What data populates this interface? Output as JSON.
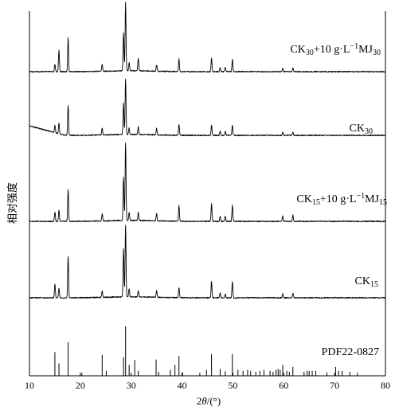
{
  "chart_data": {
    "type": "line",
    "xlabel_parts": {
      "prefix": "2",
      "italic": "θ",
      "suffix": "/(°)"
    },
    "ylabel": "相对强度",
    "xlim": [
      10,
      80
    ],
    "xticks": [
      10,
      20,
      30,
      40,
      50,
      60,
      70,
      80
    ],
    "series": [
      {
        "name_parts": [
          {
            "t": "CK"
          },
          {
            "t": "30",
            "s": "sub"
          },
          {
            "t": "+10 g·L"
          },
          {
            "t": "−1",
            "s": "sup"
          },
          {
            "t": "MJ"
          },
          {
            "t": "30",
            "s": "sub"
          }
        ],
        "baseline_index": 0,
        "peaks": [
          {
            "x": 15.0,
            "y": 9
          },
          {
            "x": 15.8,
            "y": 27
          },
          {
            "x": 17.6,
            "y": 42
          },
          {
            "x": 24.3,
            "y": 9
          },
          {
            "x": 28.5,
            "y": 48
          },
          {
            "x": 28.9,
            "y": 86
          },
          {
            "x": 29.6,
            "y": 10
          },
          {
            "x": 31.4,
            "y": 16
          },
          {
            "x": 35.0,
            "y": 8
          },
          {
            "x": 39.4,
            "y": 16
          },
          {
            "x": 45.8,
            "y": 17
          },
          {
            "x": 47.5,
            "y": 5
          },
          {
            "x": 48.5,
            "y": 6
          },
          {
            "x": 49.9,
            "y": 15
          },
          {
            "x": 59.8,
            "y": 4
          },
          {
            "x": 61.8,
            "y": 5
          }
        ]
      },
      {
        "name_parts": [
          {
            "t": "CK"
          },
          {
            "t": "30",
            "s": "sub"
          }
        ],
        "baseline_index": 1,
        "slope_start": 12,
        "peaks": [
          {
            "x": 15.0,
            "y": 9
          },
          {
            "x": 15.8,
            "y": 14
          },
          {
            "x": 17.6,
            "y": 38
          },
          {
            "x": 24.3,
            "y": 9
          },
          {
            "x": 28.5,
            "y": 40
          },
          {
            "x": 28.9,
            "y": 70
          },
          {
            "x": 29.6,
            "y": 8
          },
          {
            "x": 31.4,
            "y": 10
          },
          {
            "x": 35.0,
            "y": 8
          },
          {
            "x": 39.4,
            "y": 14
          },
          {
            "x": 45.8,
            "y": 13
          },
          {
            "x": 47.5,
            "y": 5
          },
          {
            "x": 48.5,
            "y": 5
          },
          {
            "x": 49.9,
            "y": 13
          },
          {
            "x": 59.8,
            "y": 4
          },
          {
            "x": 61.8,
            "y": 4
          }
        ]
      },
      {
        "name_parts": [
          {
            "t": "CK"
          },
          {
            "t": "15",
            "s": "sub"
          },
          {
            "t": "+10 g·L"
          },
          {
            "t": "−1",
            "s": "sup"
          },
          {
            "t": "MJ"
          },
          {
            "t": "15",
            "s": "sub"
          }
        ],
        "baseline_index": 2,
        "peaks": [
          {
            "x": 15.0,
            "y": 12
          },
          {
            "x": 15.8,
            "y": 14
          },
          {
            "x": 17.6,
            "y": 40
          },
          {
            "x": 24.3,
            "y": 9
          },
          {
            "x": 28.5,
            "y": 55
          },
          {
            "x": 28.9,
            "y": 98
          },
          {
            "x": 29.6,
            "y": 10
          },
          {
            "x": 31.4,
            "y": 10
          },
          {
            "x": 35.0,
            "y": 9
          },
          {
            "x": 39.4,
            "y": 20
          },
          {
            "x": 45.8,
            "y": 22
          },
          {
            "x": 47.5,
            "y": 6
          },
          {
            "x": 48.5,
            "y": 6
          },
          {
            "x": 49.9,
            "y": 20
          },
          {
            "x": 59.8,
            "y": 7
          },
          {
            "x": 61.8,
            "y": 8
          }
        ]
      },
      {
        "name_parts": [
          {
            "t": "CK"
          },
          {
            "t": "15",
            "s": "sub"
          }
        ],
        "baseline_index": 3,
        "peaks": [
          {
            "x": 15.0,
            "y": 17
          },
          {
            "x": 15.8,
            "y": 12
          },
          {
            "x": 17.6,
            "y": 52
          },
          {
            "x": 24.3,
            "y": 8
          },
          {
            "x": 28.5,
            "y": 60
          },
          {
            "x": 28.9,
            "y": 90
          },
          {
            "x": 29.6,
            "y": 10
          },
          {
            "x": 31.4,
            "y": 8
          },
          {
            "x": 35.0,
            "y": 8
          },
          {
            "x": 39.4,
            "y": 13
          },
          {
            "x": 45.8,
            "y": 20
          },
          {
            "x": 47.5,
            "y": 6
          },
          {
            "x": 48.5,
            "y": 5
          },
          {
            "x": 49.9,
            "y": 20
          },
          {
            "x": 59.8,
            "y": 5
          },
          {
            "x": 61.8,
            "y": 6
          }
        ]
      }
    ],
    "reference": {
      "name": "PDF22-0827",
      "lines": [
        {
          "x": 15.0,
          "h": 48
        },
        {
          "x": 15.8,
          "h": 25
        },
        {
          "x": 17.6,
          "h": 68
        },
        {
          "x": 20.3,
          "h": 6
        },
        {
          "x": 24.3,
          "h": 42
        },
        {
          "x": 25.1,
          "h": 10
        },
        {
          "x": 28.5,
          "h": 38
        },
        {
          "x": 28.9,
          "h": 100
        },
        {
          "x": 29.6,
          "h": 22
        },
        {
          "x": 30.7,
          "h": 32
        },
        {
          "x": 31.4,
          "h": 10
        },
        {
          "x": 34.9,
          "h": 33
        },
        {
          "x": 35.4,
          "h": 8
        },
        {
          "x": 37.7,
          "h": 12
        },
        {
          "x": 38.6,
          "h": 22
        },
        {
          "x": 39.4,
          "h": 40
        },
        {
          "x": 40.1,
          "h": 7
        },
        {
          "x": 43.5,
          "h": 6
        },
        {
          "x": 44.8,
          "h": 12
        },
        {
          "x": 45.8,
          "h": 44
        },
        {
          "x": 47.5,
          "h": 14
        },
        {
          "x": 48.5,
          "h": 9
        },
        {
          "x": 49.9,
          "h": 44
        },
        {
          "x": 51.0,
          "h": 12
        },
        {
          "x": 52.0,
          "h": 10
        },
        {
          "x": 52.9,
          "h": 12
        },
        {
          "x": 53.5,
          "h": 10
        },
        {
          "x": 54.5,
          "h": 8
        },
        {
          "x": 55.3,
          "h": 10
        },
        {
          "x": 56.1,
          "h": 12
        },
        {
          "x": 57.3,
          "h": 10
        },
        {
          "x": 57.9,
          "h": 8
        },
        {
          "x": 58.5,
          "h": 12
        },
        {
          "x": 58.9,
          "h": 14
        },
        {
          "x": 59.3,
          "h": 12
        },
        {
          "x": 59.8,
          "h": 22
        },
        {
          "x": 60.6,
          "h": 10
        },
        {
          "x": 61.1,
          "h": 8
        },
        {
          "x": 61.8,
          "h": 18
        },
        {
          "x": 64.0,
          "h": 8
        },
        {
          "x": 64.6,
          "h": 10
        },
        {
          "x": 65.0,
          "h": 10
        },
        {
          "x": 65.6,
          "h": 10
        },
        {
          "x": 66.3,
          "h": 10
        },
        {
          "x": 68.5,
          "h": 7
        },
        {
          "x": 70.2,
          "h": 18
        },
        {
          "x": 70.8,
          "h": 10
        },
        {
          "x": 71.5,
          "h": 10
        },
        {
          "x": 73.0,
          "h": 8
        },
        {
          "x": 74.5,
          "h": 6
        }
      ]
    }
  }
}
